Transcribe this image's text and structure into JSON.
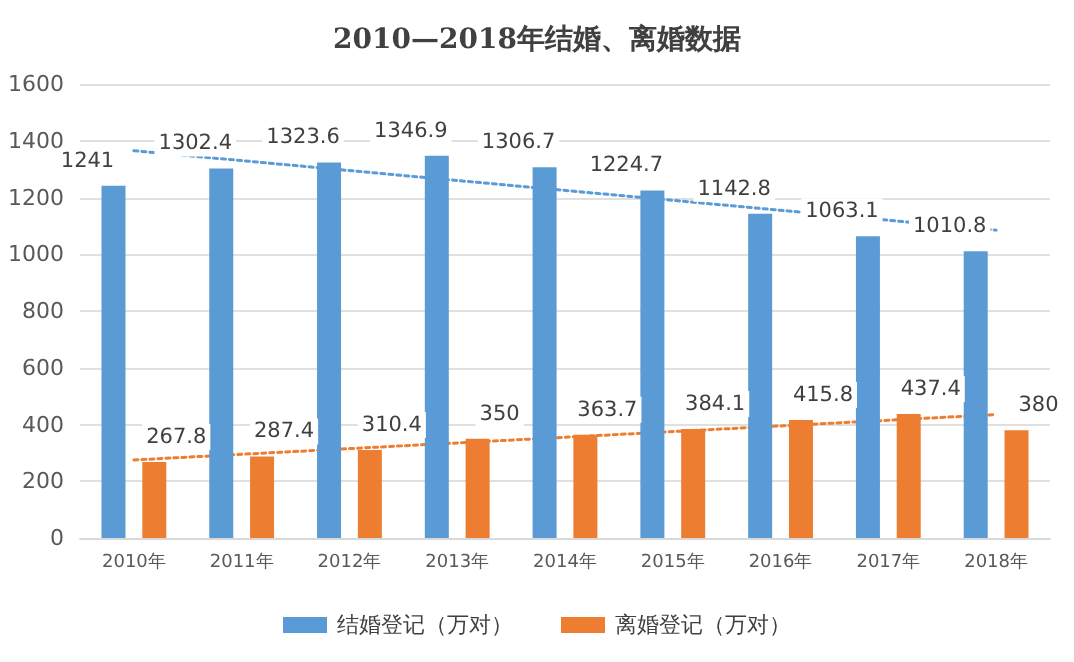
{
  "chart_data": {
    "type": "bar",
    "title": "2010—2018年结婚、离婚数据",
    "categories": [
      "2010年",
      "2011年",
      "2012年",
      "2013年",
      "2014年",
      "2015年",
      "2016年",
      "2017年",
      "2018年"
    ],
    "series": [
      {
        "name": "结婚登记（万对）",
        "color": "#5b9bd5",
        "values": [
          1241,
          1302.4,
          1323.6,
          1346.9,
          1306.7,
          1224.7,
          1142.8,
          1063.1,
          1010.8
        ],
        "value_labels": [
          "1241",
          "1302.4",
          "1323.6",
          "1346.9",
          "1306.7",
          "1224.7",
          "1142.8",
          "1063.1",
          "1010.8"
        ]
      },
      {
        "name": "离婚登记（万对）",
        "color": "#ed7d31",
        "values": [
          267.8,
          287.4,
          310.4,
          350,
          363.7,
          384.1,
          415.8,
          437.4,
          380
        ],
        "value_labels": [
          "267.8",
          "287.4",
          "310.4",
          "350",
          "363.7",
          "384.1",
          "415.8",
          "437.4",
          "380"
        ]
      },
      {
        "type": "line",
        "color": "#5b9bd5",
        "x": [
          "2010年",
          "2018年"
        ],
        "values": [
          1365,
          1085
        ],
        "line_style": "dotted",
        "marker": "none"
      },
      {
        "type": "line",
        "color": "#ed7d31",
        "x": [
          "2010年",
          "2018年"
        ],
        "values": [
          275,
          435
        ],
        "line_style": "dotted",
        "marker": "none"
      }
    ],
    "ylim": [
      0,
      1600
    ],
    "yticks": [
      0,
      200,
      400,
      600,
      800,
      1000,
      1200,
      1400,
      1600
    ],
    "grid": "y",
    "legend": "bottom"
  }
}
